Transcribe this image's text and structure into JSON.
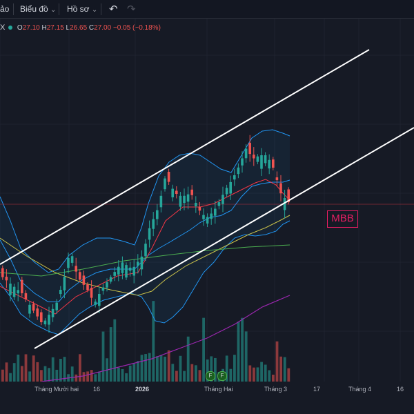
{
  "toolbar": {
    "item0": "ảo",
    "chart_menu": "Biểu đồ",
    "profile_menu": "Hồ sơ",
    "chevron": "⌄",
    "undo": "↶",
    "redo": "↷"
  },
  "legend": {
    "prefix": "X",
    "open_label": "O",
    "open": "27.10",
    "high_label": "H",
    "high": "27.15",
    "low_label": "L",
    "low": "26.65",
    "close_label": "C",
    "close": "27.00",
    "change": "−0.05 (−0.18%)"
  },
  "symbol_badge": "MBB",
  "events": [
    "F",
    "F"
  ],
  "time_axis": {
    "labels": [
      "Tháng Mười hai",
      "16",
      "2026",
      "Tháng Hai",
      "Tháng 3",
      "17",
      "Tháng 4",
      "16"
    ],
    "bold_labels": [
      "2026"
    ]
  },
  "colors": {
    "up": "#26a69a",
    "down": "#ef5350",
    "bollinger": "#2196f3",
    "trendline": "#ffffff",
    "ma_red": "#f23645",
    "ma_yellow": "#c9c14a",
    "ma_green": "#4caf50",
    "volume_ma": "#9c27b0",
    "price_line": "#f23645",
    "badge": "#e91e63"
  }
}
